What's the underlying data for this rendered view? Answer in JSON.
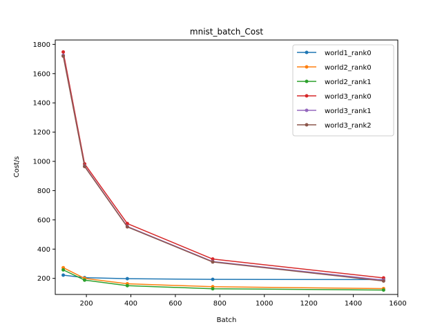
{
  "chart_data": {
    "type": "line",
    "title": "mnist_batch_Cost",
    "xlabel": "Batch",
    "ylabel": "Cost/s",
    "x": [
      96,
      192,
      384,
      768,
      1536
    ],
    "xlim": [
      60,
      1600
    ],
    "ylim": [
      90,
      1830
    ],
    "xticks": [
      200,
      400,
      600,
      800,
      1000,
      1200,
      1400,
      1600
    ],
    "yticks": [
      200,
      400,
      600,
      800,
      1000,
      1200,
      1400,
      1600,
      1800
    ],
    "grid": false,
    "legend_position": "top-right",
    "marker": "dot",
    "series": [
      {
        "name": "world1_rank0",
        "color": "#1f77b4",
        "values": [
          222,
          205,
          198,
          193,
          192
        ]
      },
      {
        "name": "world2_rank0",
        "color": "#ff7f0e",
        "values": [
          273,
          200,
          163,
          143,
          130
        ]
      },
      {
        "name": "world2_rank1",
        "color": "#2ca02c",
        "values": [
          258,
          188,
          150,
          129,
          120
        ]
      },
      {
        "name": "world3_rank0",
        "color": "#d62728",
        "values": [
          1748,
          983,
          575,
          332,
          203
        ]
      },
      {
        "name": "world3_rank1",
        "color": "#9467bd",
        "values": [
          1725,
          968,
          555,
          315,
          188
        ]
      },
      {
        "name": "world3_rank2",
        "color": "#8c564b",
        "values": [
          1720,
          965,
          552,
          312,
          182
        ]
      }
    ]
  }
}
